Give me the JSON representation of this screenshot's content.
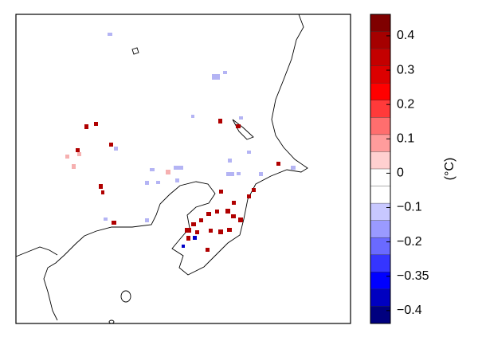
{
  "colorbar": {
    "label": "(°C)",
    "colors": [
      "#7f0000",
      "#a50000",
      "#c40000",
      "#dc0000",
      "#ff0000",
      "#ff3a3a",
      "#ff6e6e",
      "#ff9c9c",
      "#ffd0d0",
      "#ffffff",
      "#ffffff",
      "#c8c8ff",
      "#9a9aff",
      "#6a6aff",
      "#3535ff",
      "#0000ff",
      "#0000c0",
      "#00007f"
    ],
    "ticks": [
      {
        "value": 0.4,
        "label": "0.4"
      },
      {
        "value": 0.3,
        "label": "0.3"
      },
      {
        "value": 0.2,
        "label": "0.2"
      },
      {
        "value": 0.1,
        "label": "0.1"
      },
      {
        "value": 0,
        "label": "0"
      },
      {
        "value": -0.1,
        "label": "−0.1"
      },
      {
        "value": -0.2,
        "label": "−0.2"
      },
      {
        "value": -0.35,
        "label": "−0.35"
      },
      {
        "value": -0.4,
        "label": "−0.4"
      }
    ]
  }
}
